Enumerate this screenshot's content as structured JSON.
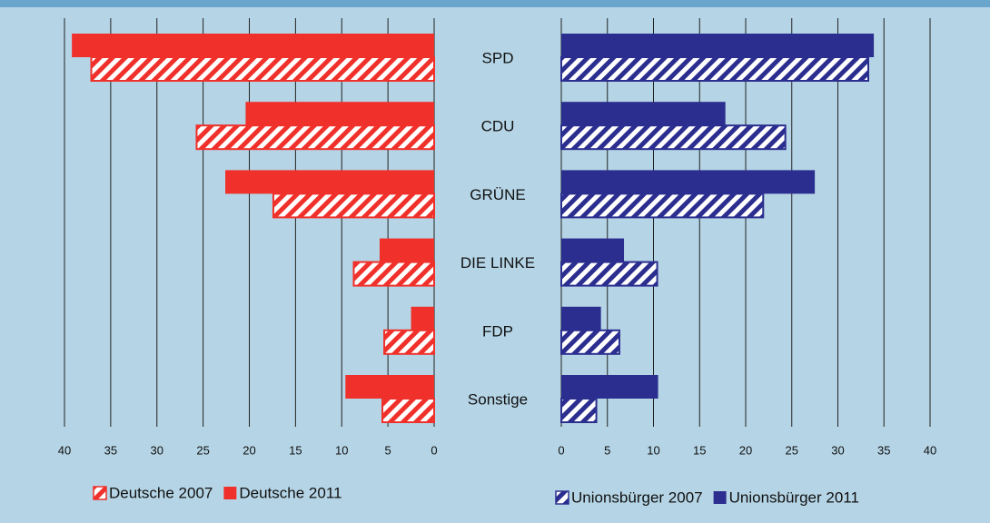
{
  "chart_data": [
    {
      "type": "bar",
      "orientation": "horizontal",
      "categories": [
        "SPD",
        "CDU",
        "GRÜNE",
        "DIE LINKE",
        "FDP",
        "Sonstige"
      ],
      "series": [
        {
          "name": "Deutsche 2007",
          "color": "#f0302a",
          "hatched": true,
          "values": [
            37.1,
            25.7,
            17.4,
            8.7,
            5.4,
            5.6
          ]
        },
        {
          "name": "Deutsche 2011",
          "color": "#f0302a",
          "hatched": false,
          "values": [
            39.2,
            20.4,
            22.6,
            5.9,
            2.5,
            9.6
          ]
        }
      ],
      "xlim": [
        40,
        0
      ],
      "xticks": [
        40,
        35,
        30,
        25,
        20,
        15,
        10,
        5,
        0
      ],
      "grid": true
    },
    {
      "type": "bar",
      "orientation": "horizontal",
      "series": [
        {
          "name": "Unionsbürger 2007",
          "color": "#2b2e8f",
          "hatched": true,
          "values": [
            33.3,
            24.3,
            21.9,
            10.4,
            6.3,
            3.8
          ]
        },
        {
          "name": "Unionsbürger 2011",
          "color": "#2b2e8f",
          "hatched": false,
          "values": [
            33.9,
            17.8,
            27.5,
            6.8,
            4.3,
            10.5
          ]
        }
      ],
      "xlim": [
        0,
        40
      ],
      "xticks": [
        0,
        5,
        10,
        15,
        20,
        25,
        30,
        35,
        40
      ],
      "grid": true
    }
  ]
}
